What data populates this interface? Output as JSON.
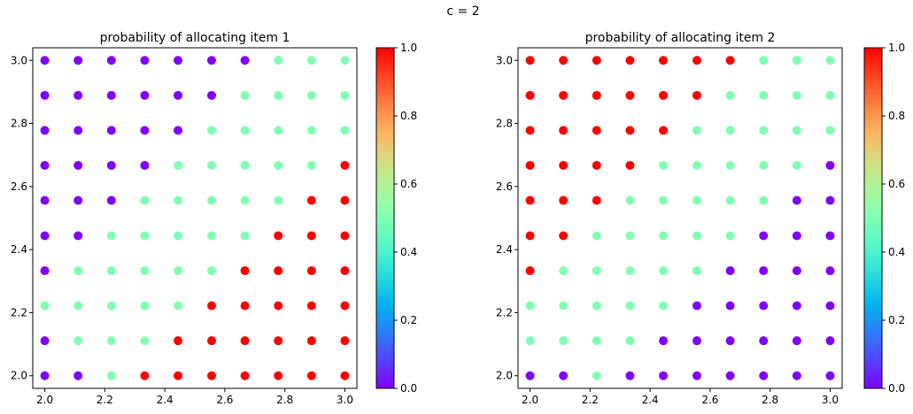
{
  "suptitle": "c = 2",
  "colormap": "rainbow",
  "colorbar_ticks": [
    "0.0",
    "0.2",
    "0.4",
    "0.6",
    "0.8",
    "1.0"
  ],
  "chart_data": [
    {
      "type": "scatter",
      "title": "probability of allocating item 1",
      "xlabel": "",
      "ylabel": "",
      "x_grid": [
        2.0,
        2.111,
        2.222,
        2.333,
        2.444,
        2.556,
        2.667,
        2.778,
        2.889,
        3.0
      ],
      "y_grid": [
        2.0,
        2.111,
        2.222,
        2.333,
        2.444,
        2.556,
        2.667,
        2.778,
        2.889,
        3.0
      ],
      "x_tick_labels": [
        "2.0",
        "2.2",
        "2.4",
        "2.6",
        "2.8",
        "3.0"
      ],
      "y_tick_labels": [
        "2.0",
        "2.2",
        "2.4",
        "2.6",
        "2.8",
        "3.0"
      ],
      "xlim": [
        1.96,
        3.04
      ],
      "ylim": [
        1.96,
        3.04
      ],
      "color_range": [
        0,
        1
      ],
      "values_rows_top_to_bottom": [
        [
          0,
          0,
          0,
          0,
          0,
          0,
          0,
          0.5,
          0.5,
          0.5
        ],
        [
          0,
          0,
          0,
          0,
          0,
          0,
          0.5,
          0.5,
          0.5,
          0.5
        ],
        [
          0,
          0,
          0,
          0,
          0,
          0.5,
          0.5,
          0.5,
          0.5,
          0.5
        ],
        [
          0,
          0,
          0,
          0,
          0.5,
          0.5,
          0.5,
          0.5,
          0.5,
          1
        ],
        [
          0,
          0,
          0,
          0.5,
          0.5,
          0.5,
          0.5,
          0.5,
          1,
          1
        ],
        [
          0,
          0,
          0.5,
          0.5,
          0.5,
          0.5,
          0.5,
          1,
          1,
          1
        ],
        [
          0,
          0.5,
          0.5,
          0.5,
          0.5,
          0.5,
          1,
          1,
          1,
          1
        ],
        [
          0.5,
          0.5,
          0.5,
          0.5,
          0.5,
          1,
          1,
          1,
          1,
          1
        ],
        [
          0,
          0.5,
          0.5,
          0.5,
          1,
          1,
          1,
          1,
          1,
          1
        ],
        [
          0,
          0,
          0.5,
          1,
          1,
          1,
          1,
          1,
          1,
          1
        ]
      ]
    },
    {
      "type": "scatter",
      "title": "probability of allocating item 2",
      "xlabel": "",
      "ylabel": "",
      "x_grid": [
        2.0,
        2.111,
        2.222,
        2.333,
        2.444,
        2.556,
        2.667,
        2.778,
        2.889,
        3.0
      ],
      "y_grid": [
        2.0,
        2.111,
        2.222,
        2.333,
        2.444,
        2.556,
        2.667,
        2.778,
        2.889,
        3.0
      ],
      "x_tick_labels": [
        "2.0",
        "2.2",
        "2.4",
        "2.6",
        "2.8",
        "3.0"
      ],
      "y_tick_labels": [
        "2.0",
        "2.2",
        "2.4",
        "2.6",
        "2.8",
        "3.0"
      ],
      "xlim": [
        1.96,
        3.04
      ],
      "ylim": [
        1.96,
        3.04
      ],
      "color_range": [
        0,
        1
      ],
      "values_rows_top_to_bottom": [
        [
          1,
          1,
          1,
          1,
          1,
          1,
          1,
          0.5,
          0.5,
          0.5
        ],
        [
          1,
          1,
          1,
          1,
          1,
          1,
          0.5,
          0.5,
          0.5,
          0.5
        ],
        [
          1,
          1,
          1,
          1,
          1,
          0.5,
          0.5,
          0.5,
          0.5,
          0.5
        ],
        [
          1,
          1,
          1,
          1,
          0.5,
          0.5,
          0.5,
          0.5,
          0.5,
          0
        ],
        [
          1,
          1,
          1,
          0.5,
          0.5,
          0.5,
          0.5,
          0.5,
          0,
          0
        ],
        [
          1,
          1,
          0.5,
          0.5,
          0.5,
          0.5,
          0.5,
          0,
          0,
          0
        ],
        [
          1,
          0.5,
          0.5,
          0.5,
          0.5,
          0.5,
          0,
          0,
          0,
          0
        ],
        [
          0.5,
          0.5,
          0.5,
          0.5,
          0.5,
          0,
          0,
          0,
          0,
          0
        ],
        [
          0.5,
          0.5,
          0.5,
          0.5,
          0,
          0,
          0,
          0,
          0,
          0
        ],
        [
          0,
          0,
          0.5,
          0,
          0,
          0,
          0,
          0,
          0,
          0
        ]
      ]
    }
  ]
}
